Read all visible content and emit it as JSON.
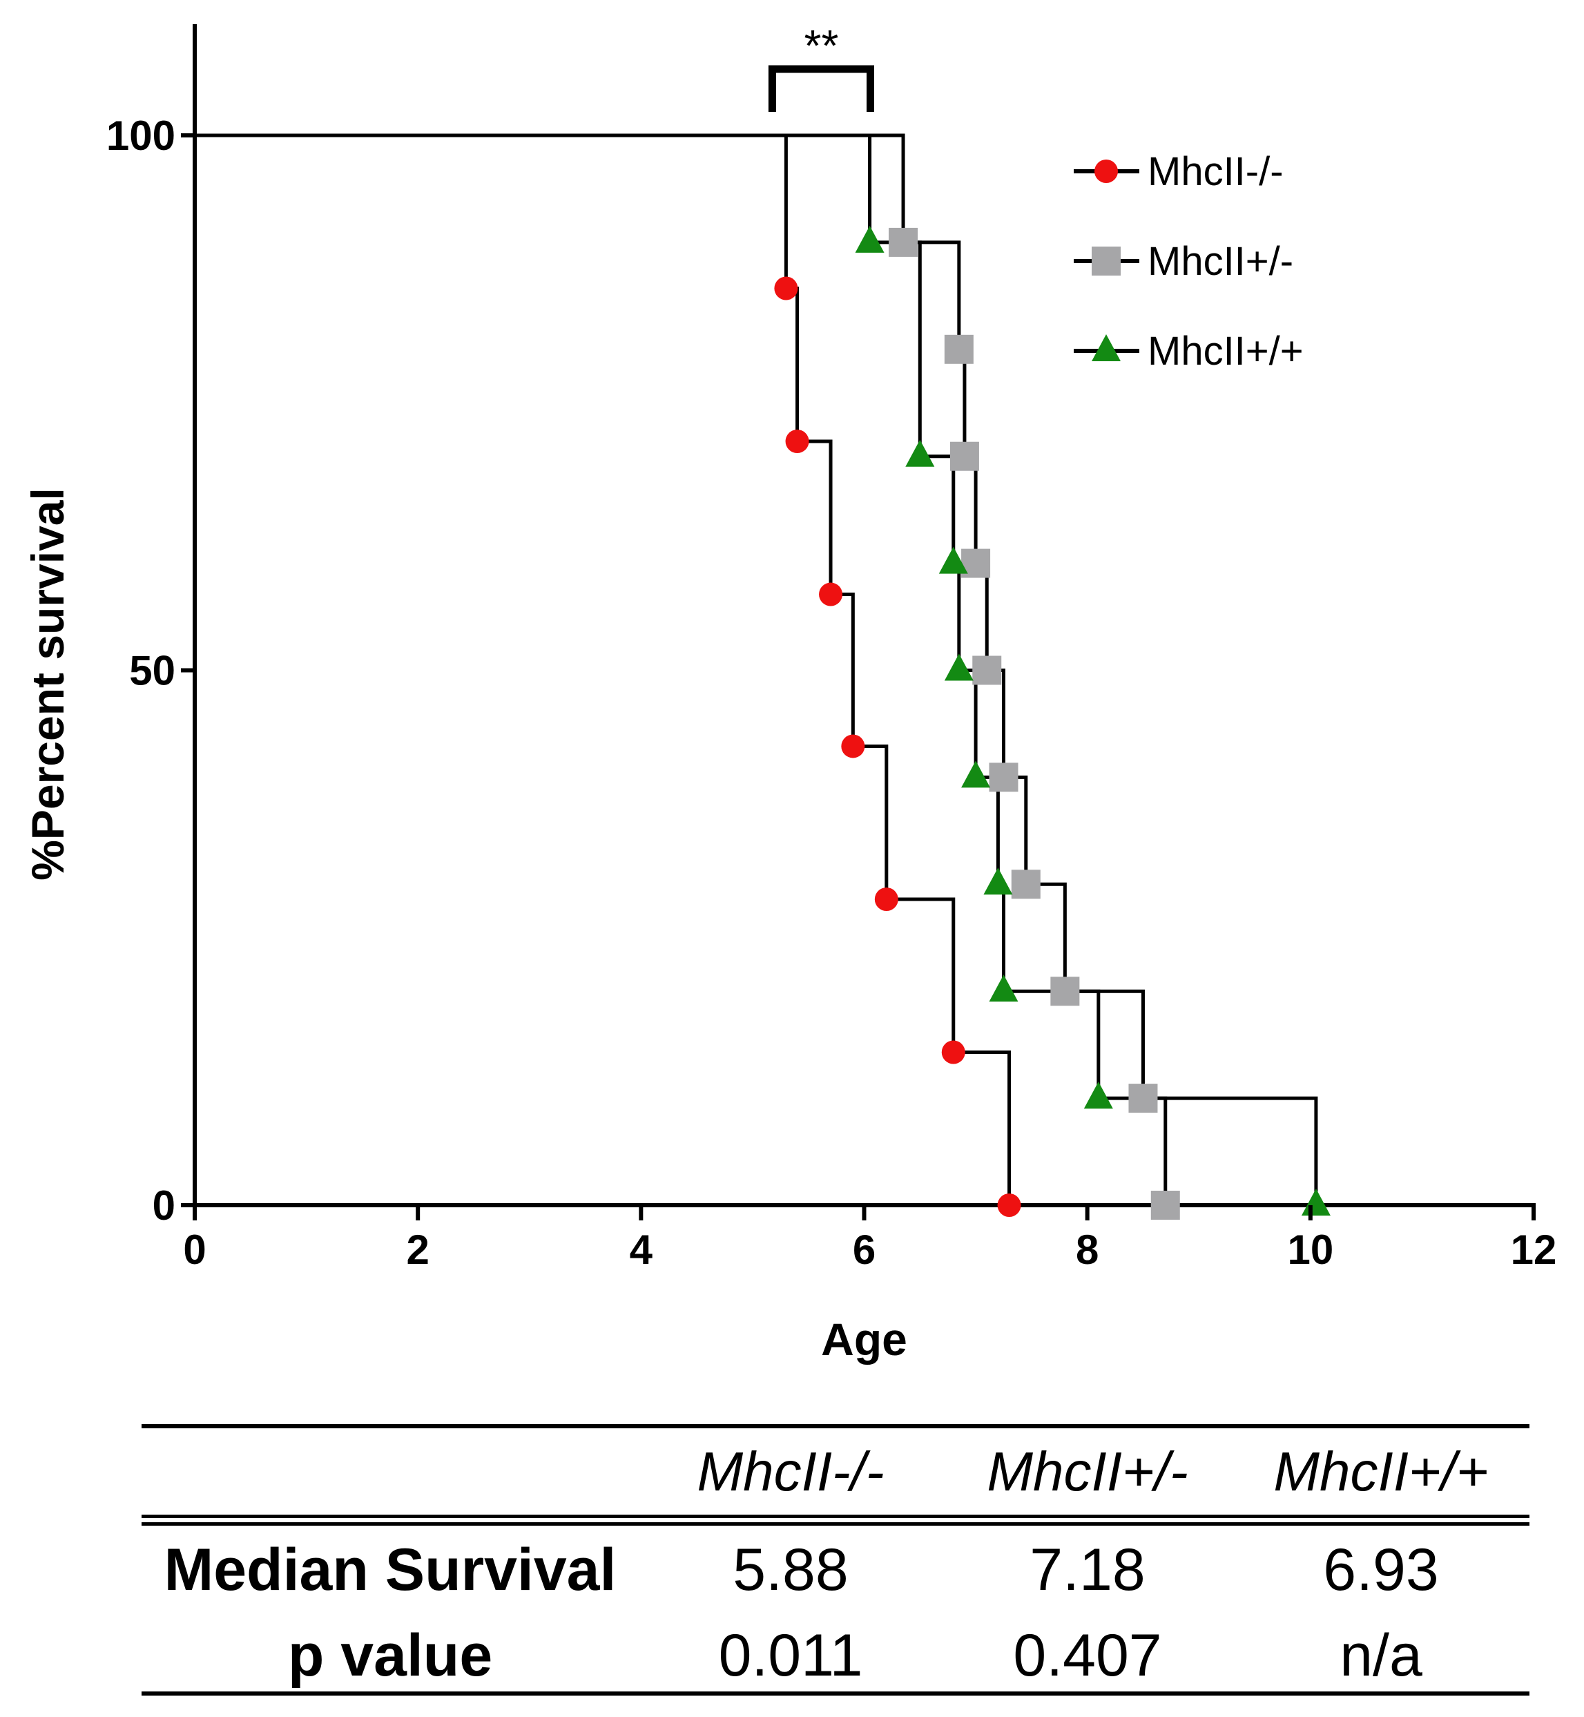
{
  "chart_data": {
    "type": "line",
    "subtype": "kaplan-meier survival",
    "title": "",
    "xlabel": "Age",
    "ylabel": "%Percent survival",
    "xlim": [
      0,
      12
    ],
    "ylim": [
      0,
      100
    ],
    "xticks": [
      "0",
      "2",
      "4",
      "6",
      "8",
      "10",
      "12"
    ],
    "yticks": [
      "0",
      "50",
      "100"
    ],
    "legend_position": "top-right",
    "grid": false,
    "series": [
      {
        "name": "MhcII-/-",
        "color": "#ee1111",
        "marker": "circle",
        "steps": [
          [
            0,
            100
          ],
          [
            5.3,
            85.7
          ],
          [
            5.4,
            71.4
          ],
          [
            5.7,
            57.1
          ],
          [
            5.9,
            42.9
          ],
          [
            6.2,
            28.6
          ],
          [
            6.8,
            14.3
          ],
          [
            7.3,
            0
          ]
        ]
      },
      {
        "name": "MhcII+/-",
        "color": "#a6a6a8",
        "marker": "square",
        "steps": [
          [
            0,
            100
          ],
          [
            6.35,
            90
          ],
          [
            6.85,
            80
          ],
          [
            6.9,
            70
          ],
          [
            7.0,
            60
          ],
          [
            7.1,
            50
          ],
          [
            7.25,
            40
          ],
          [
            7.45,
            30
          ],
          [
            7.8,
            20
          ],
          [
            8.5,
            10
          ],
          [
            8.7,
            0
          ]
        ]
      },
      {
        "name": "MhcII+/+",
        "color": "#138a13",
        "marker": "triangle",
        "steps": [
          [
            0,
            100
          ],
          [
            6.05,
            90
          ],
          [
            6.5,
            70
          ],
          [
            6.8,
            60
          ],
          [
            6.85,
            50
          ],
          [
            7.0,
            40
          ],
          [
            7.2,
            30
          ],
          [
            7.25,
            20
          ],
          [
            8.1,
            10
          ],
          [
            10.05,
            0
          ]
        ]
      }
    ],
    "annotations": [
      {
        "text": "**",
        "type": "significance-bracket",
        "x_from": 5.3,
        "x_to": 6.0
      }
    ]
  },
  "table": {
    "columns": [
      "",
      "MhcII-/-",
      "MhcII+/-",
      "MhcII+/+"
    ],
    "rows": [
      {
        "label": "Median Survival",
        "values": [
          "5.88",
          "7.18",
          "6.93"
        ]
      },
      {
        "label": "p value",
        "values": [
          "0.011",
          "0.407",
          "n/a"
        ]
      }
    ]
  }
}
